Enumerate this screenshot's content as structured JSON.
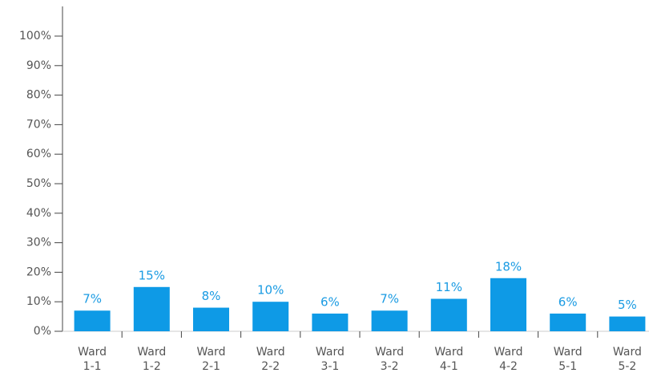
{
  "chart_data": {
    "type": "bar",
    "categories": [
      "Ward 1-1",
      "Ward 1-2",
      "Ward 2-1",
      "Ward 2-2",
      "Ward 3-1",
      "Ward 3-2",
      "Ward 4-1",
      "Ward 4-2",
      "Ward 5-1",
      "Ward 5-2"
    ],
    "values": [
      7,
      15,
      8,
      10,
      6,
      7,
      11,
      18,
      6,
      5
    ],
    "value_labels": [
      "7%",
      "15%",
      "8%",
      "10%",
      "6%",
      "7%",
      "11%",
      "18%",
      "6%",
      "5%"
    ],
    "color": "#0e9ae6",
    "ylim": [
      0,
      100
    ],
    "yticks": [
      {
        "value": 0,
        "label": "0%"
      },
      {
        "value": 10,
        "label": "10%"
      },
      {
        "value": 20,
        "label": "20%"
      },
      {
        "value": 30,
        "label": "30%"
      },
      {
        "value": 40,
        "label": "40%"
      },
      {
        "value": 50,
        "label": "50%"
      },
      {
        "value": 60,
        "label": "60%"
      },
      {
        "value": 70,
        "label": "70%"
      },
      {
        "value": 80,
        "label": "80%"
      },
      {
        "value": 90,
        "label": "90%"
      },
      {
        "value": 100,
        "label": "100%"
      }
    ]
  }
}
